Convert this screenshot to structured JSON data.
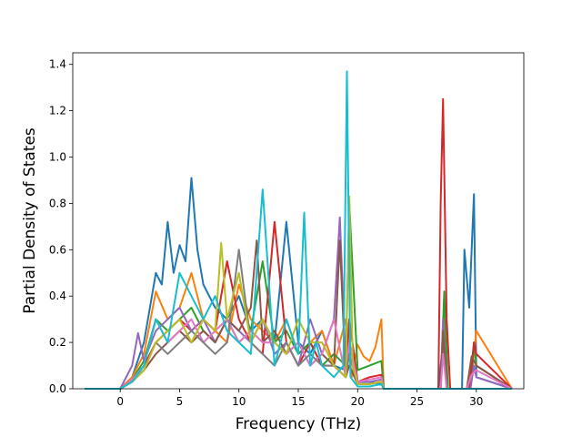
{
  "chart_data": {
    "type": "line",
    "title": "",
    "xlabel": "Frequency (THz)",
    "ylabel": "Partial Density of States",
    "xlim": [
      -4,
      34
    ],
    "ylim": [
      0,
      1.45
    ],
    "xticks": [
      0,
      5,
      10,
      15,
      20,
      25,
      30
    ],
    "yticks": [
      0.0,
      0.2,
      0.4,
      0.6,
      0.8,
      1.0,
      1.2,
      1.4
    ],
    "ytick_labels": [
      "0.0",
      "0.2",
      "0.4",
      "0.6",
      "0.8",
      "1.0",
      "1.2",
      "1.4"
    ],
    "grid": false,
    "legend": "none",
    "series": [
      {
        "color": "#1f77b4",
        "x": [
          -3,
          0,
          1,
          2,
          3,
          3.5,
          4,
          4.5,
          5,
          5.5,
          6,
          6.5,
          7,
          8,
          9,
          10,
          11,
          12,
          13,
          14,
          15,
          16,
          17,
          18,
          19,
          19.3,
          20,
          21,
          22,
          22.2,
          26.8,
          27.2,
          27.6,
          28.8,
          29,
          29.4,
          29.8,
          30,
          33
        ],
        "y": [
          0,
          0,
          0.05,
          0.2,
          0.5,
          0.45,
          0.72,
          0.5,
          0.62,
          0.55,
          0.91,
          0.6,
          0.45,
          0.35,
          0.3,
          0.4,
          0.25,
          0.3,
          0.2,
          0.72,
          0.2,
          0.15,
          0.25,
          0.1,
          0.08,
          0.3,
          0.03,
          0.03,
          0.02,
          0,
          0,
          0.2,
          0,
          0,
          0.6,
          0.35,
          0.84,
          0.05,
          0
        ]
      },
      {
        "color": "#ff7f0e",
        "x": [
          -3,
          0,
          1,
          2,
          3,
          4,
          5,
          6,
          7,
          8,
          9,
          10,
          11,
          12,
          13,
          14,
          15,
          16,
          17,
          18,
          19,
          19.5,
          20,
          20.5,
          21,
          21.5,
          22,
          22.2,
          27,
          27.3,
          27.6,
          29.5,
          30,
          33
        ],
        "y": [
          0,
          0,
          0.05,
          0.15,
          0.42,
          0.3,
          0.35,
          0.5,
          0.3,
          0.25,
          0.2,
          0.45,
          0.3,
          0.25,
          0.2,
          0.3,
          0.15,
          0.2,
          0.25,
          0.1,
          0.3,
          0.05,
          0.19,
          0.14,
          0.12,
          0.18,
          0.3,
          0,
          0,
          0.3,
          0,
          0,
          0.25,
          0
        ]
      },
      {
        "color": "#2ca02c",
        "x": [
          -3,
          0,
          1,
          2,
          3,
          4,
          5,
          6,
          7,
          8,
          9,
          10,
          11,
          12,
          13,
          14,
          15,
          16,
          17,
          18,
          19,
          19.3,
          20,
          21,
          22,
          22.2,
          27,
          27.3,
          27.6,
          29.5,
          29.8,
          30,
          33
        ],
        "y": [
          0,
          0,
          0.04,
          0.12,
          0.3,
          0.25,
          0.3,
          0.35,
          0.25,
          0.2,
          0.3,
          0.2,
          0.25,
          0.55,
          0.2,
          0.25,
          0.15,
          0.2,
          0.1,
          0.15,
          0.1,
          0.8,
          0.08,
          0.1,
          0.12,
          0,
          0,
          0.42,
          0,
          0,
          0.2,
          0.1,
          0
        ]
      },
      {
        "color": "#d62728",
        "x": [
          -3,
          0,
          1,
          2,
          3,
          4,
          5,
          6,
          7,
          8,
          9,
          10,
          11,
          12,
          13,
          14,
          15,
          16,
          17,
          18,
          19,
          19.3,
          20,
          21,
          22,
          22.2,
          26.8,
          27,
          27.2,
          27.5,
          27.8,
          29.4,
          29.8,
          30,
          33
        ],
        "y": [
          0,
          0,
          0.03,
          0.1,
          0.2,
          0.25,
          0.3,
          0.25,
          0.3,
          0.25,
          0.55,
          0.3,
          0.2,
          0.15,
          0.72,
          0.2,
          0.1,
          0.2,
          0.1,
          0.1,
          0.05,
          0.3,
          0.03,
          0.05,
          0.06,
          0,
          0,
          0.8,
          1.25,
          0.3,
          0,
          0,
          0.2,
          0.15,
          0
        ]
      },
      {
        "color": "#9467bd",
        "x": [
          -3,
          0,
          1,
          1.5,
          2,
          3,
          4,
          5,
          6,
          7,
          8,
          9,
          10,
          11,
          12,
          13,
          14,
          15,
          16,
          17,
          18,
          18.5,
          19,
          19.3,
          20,
          21,
          22,
          22.2,
          27,
          27.2,
          27.5,
          29.5,
          29.8,
          30,
          33
        ],
        "y": [
          0,
          0,
          0.1,
          0.24,
          0.12,
          0.25,
          0.3,
          0.35,
          0.25,
          0.3,
          0.2,
          0.3,
          0.25,
          0.2,
          0.3,
          0.15,
          0.2,
          0.1,
          0.3,
          0.15,
          0.3,
          0.74,
          0.1,
          0.2,
          0.03,
          0.03,
          0.04,
          0,
          0,
          0.3,
          0,
          0,
          0.1,
          0.05,
          0
        ]
      },
      {
        "color": "#8c564b",
        "x": [
          -3,
          0,
          1,
          2,
          3,
          4,
          5,
          6,
          7,
          8,
          9,
          10,
          11,
          11.5,
          12,
          13,
          14,
          15,
          16,
          17,
          18,
          18.5,
          19,
          19.3,
          20,
          21,
          22,
          22.2,
          27,
          27.2,
          27.5,
          29.2,
          29.6,
          30,
          33
        ],
        "y": [
          0,
          0,
          0.03,
          0.08,
          0.15,
          0.2,
          0.25,
          0.2,
          0.25,
          0.2,
          0.3,
          0.25,
          0.35,
          0.64,
          0.2,
          0.25,
          0.15,
          0.2,
          0.1,
          0.15,
          0.1,
          0.64,
          0.05,
          0.1,
          0.02,
          0.02,
          0.03,
          0,
          0,
          0.25,
          0,
          0,
          0.14,
          0.1,
          0
        ]
      },
      {
        "color": "#e377c2",
        "x": [
          -3,
          0,
          1,
          2,
          3,
          4,
          5,
          6,
          7,
          8,
          9,
          10,
          11,
          12,
          13,
          14,
          15,
          16,
          17,
          18,
          19,
          19.3,
          20,
          21,
          22,
          22.2,
          27,
          27.2,
          27.5,
          29.2,
          29.6,
          30,
          33
        ],
        "y": [
          0,
          0,
          0.04,
          0.1,
          0.3,
          0.2,
          0.25,
          0.3,
          0.2,
          0.25,
          0.3,
          0.2,
          0.25,
          0.2,
          0.2,
          0.15,
          0.2,
          0.1,
          0.15,
          0.3,
          0.05,
          0.2,
          0.03,
          0.04,
          0.05,
          0,
          0,
          0.15,
          0,
          0,
          0.06,
          0.08,
          0
        ]
      },
      {
        "color": "#7f7f7f",
        "x": [
          -3,
          0,
          1,
          2,
          3,
          4,
          5,
          6,
          7,
          8,
          9,
          10,
          11,
          12,
          13,
          14,
          15,
          16,
          17,
          18,
          19,
          19.3,
          20,
          21,
          22,
          22.2,
          33
        ],
        "y": [
          0,
          0,
          0.03,
          0.08,
          0.2,
          0.15,
          0.2,
          0.25,
          0.2,
          0.15,
          0.2,
          0.6,
          0.2,
          0.15,
          0.1,
          0.2,
          0.1,
          0.15,
          0.1,
          0.1,
          0.05,
          0.15,
          0.02,
          0.02,
          0.03,
          0,
          0
        ]
      },
      {
        "color": "#bcbd22",
        "x": [
          -3,
          0,
          1,
          2,
          3,
          4,
          5,
          6,
          7,
          8,
          8.5,
          9,
          10,
          11,
          12,
          13,
          14,
          15,
          16,
          17,
          18,
          19,
          19.3,
          19.6,
          20,
          21,
          22,
          22.2,
          33
        ],
        "y": [
          0,
          0,
          0.03,
          0.08,
          0.2,
          0.25,
          0.3,
          0.2,
          0.3,
          0.25,
          0.63,
          0.3,
          0.5,
          0.2,
          0.3,
          0.2,
          0.15,
          0.3,
          0.2,
          0.2,
          0.1,
          0.05,
          0.83,
          0.1,
          0.02,
          0.02,
          0.03,
          0,
          0
        ]
      },
      {
        "color": "#17becf",
        "x": [
          -3,
          0,
          1,
          2,
          3,
          4,
          5,
          6,
          7,
          8,
          9,
          10,
          11,
          12,
          13,
          14,
          15,
          15.5,
          16,
          16.5,
          17,
          18,
          18.8,
          19.1,
          19.4,
          20,
          21,
          22,
          22.2,
          33
        ],
        "y": [
          0,
          0,
          0.03,
          0.1,
          0.3,
          0.2,
          0.5,
          0.4,
          0.3,
          0.4,
          0.25,
          0.2,
          0.15,
          0.86,
          0.1,
          0.3,
          0.15,
          0.76,
          0.1,
          0.2,
          0.1,
          0.05,
          0.1,
          1.37,
          0.05,
          0.01,
          0.01,
          0.02,
          0,
          0
        ]
      }
    ]
  }
}
